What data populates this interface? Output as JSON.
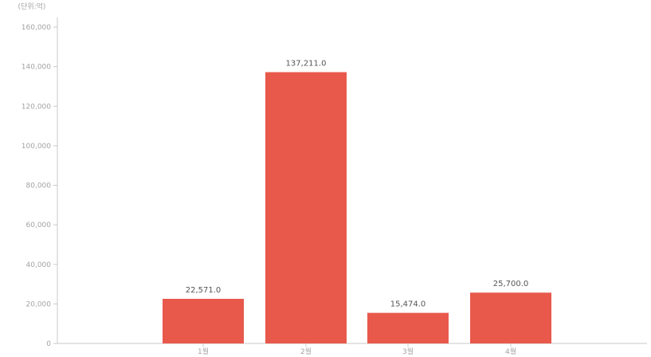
{
  "chart_data": {
    "type": "bar",
    "y_unit_label": "(단위:억)",
    "categories": [
      "1월",
      "2월",
      "3월",
      "4월"
    ],
    "values": [
      22571.0,
      137211.0,
      15474.0,
      25700.0
    ],
    "value_labels": [
      "22,571.0",
      "137,211.0",
      "15,474.0",
      "25,700.0"
    ],
    "ylim": [
      0,
      160000
    ],
    "y_ticks": [
      0,
      20000,
      40000,
      60000,
      80000,
      100000,
      120000,
      140000,
      160000
    ],
    "y_tick_labels": [
      "0",
      "20,000",
      "40,000",
      "60,000",
      "80,000",
      "100,000",
      "120,000",
      "140,000",
      "160,000"
    ],
    "bar_color": "#e8594c",
    "grid": false,
    "legend": "none"
  }
}
